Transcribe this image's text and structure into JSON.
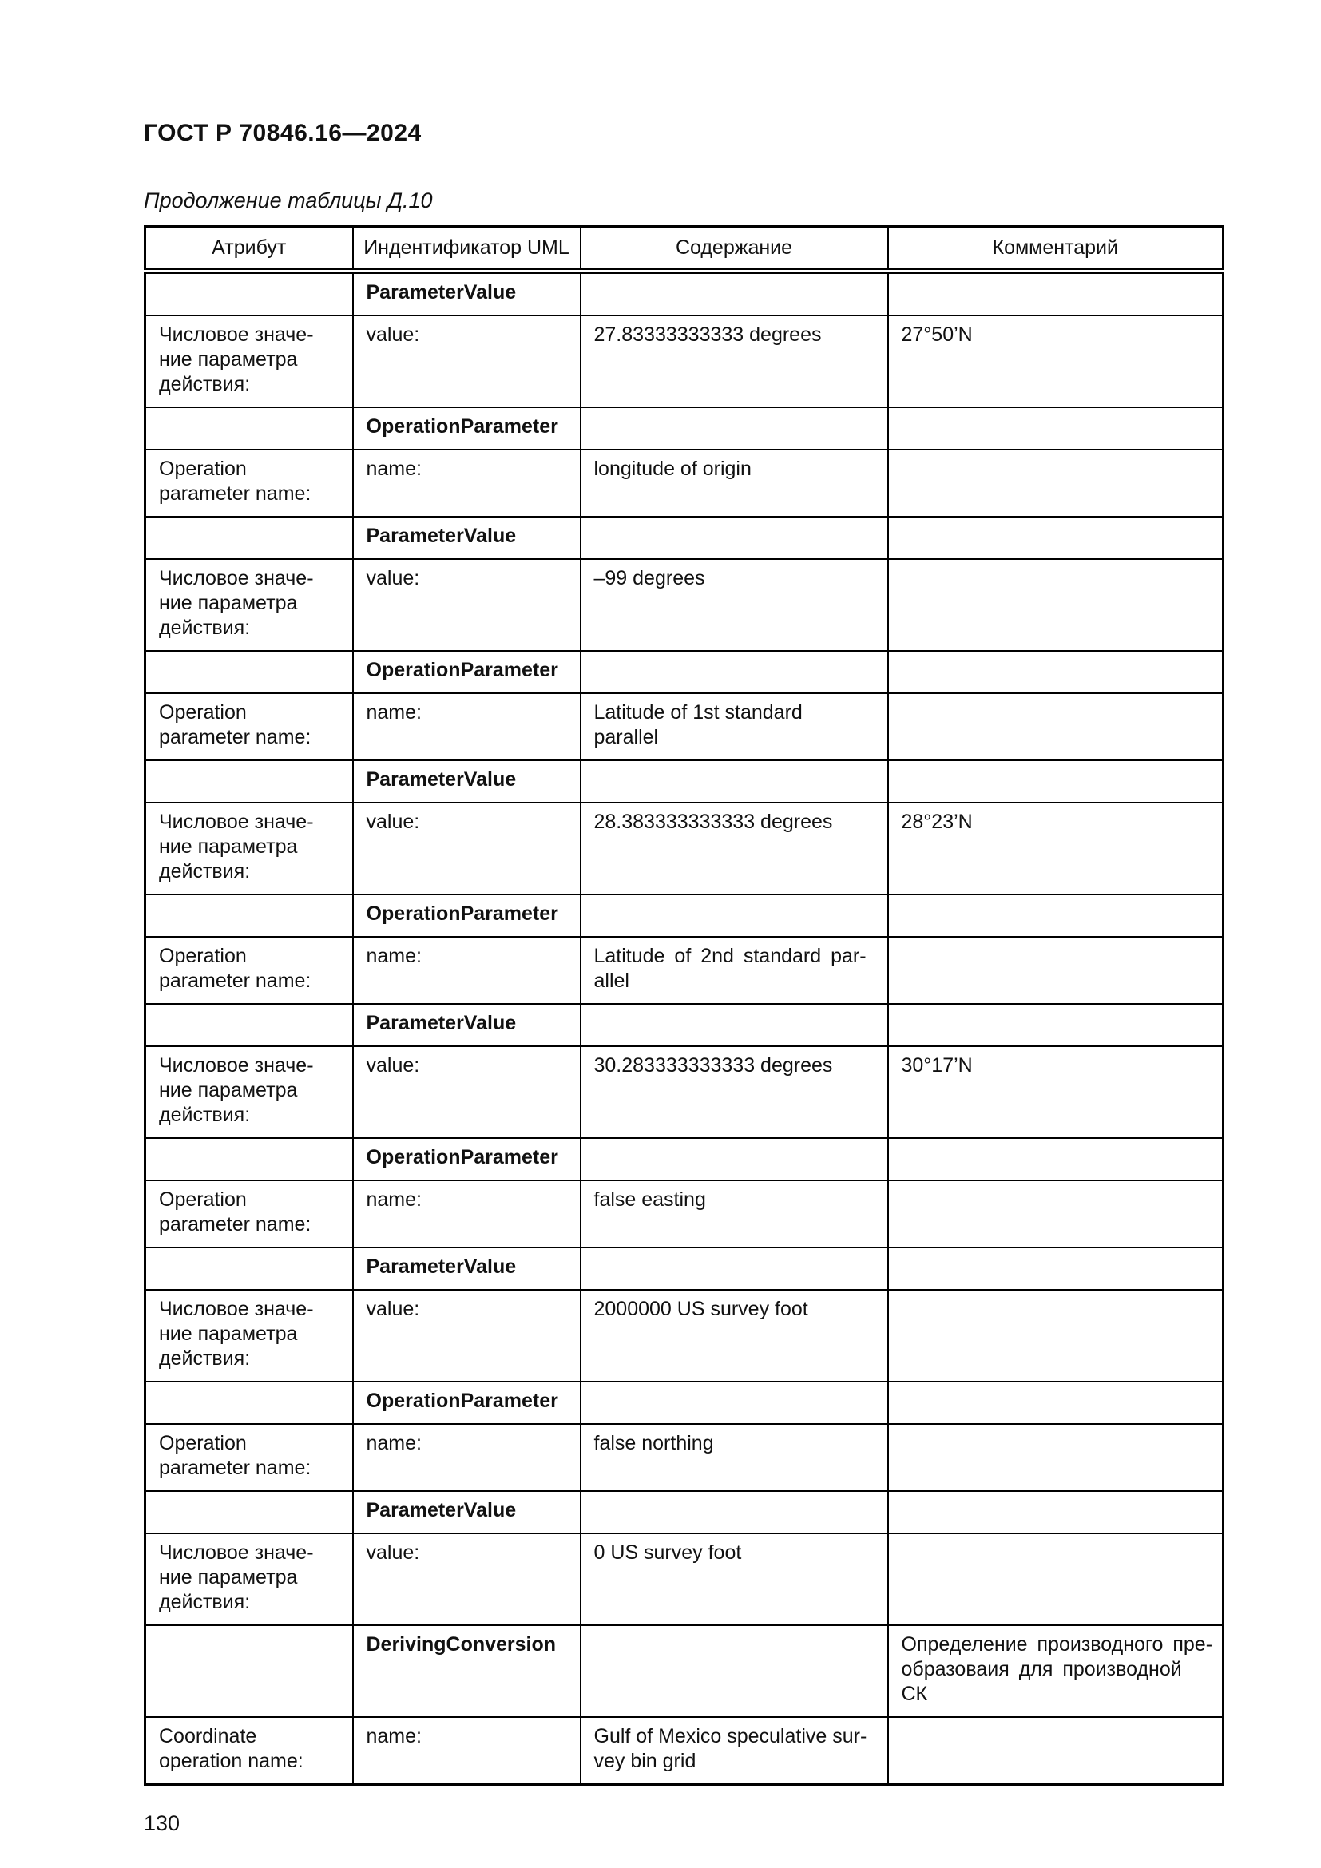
{
  "page": {
    "doc_header": "ГОСТ Р 70846.16—2024",
    "table_caption": "Продолжение таблицы Д.10",
    "page_number": "130"
  },
  "table": {
    "columns": [
      "Атрибут",
      "Индентификатор UML",
      "Содержание",
      "Комментарий"
    ],
    "rows": [
      {
        "attr": "",
        "uml": "ParameterValue",
        "content": "",
        "comment": "",
        "bold": true
      },
      {
        "attr": "Числовое значе-\nние параметра\nдействия:",
        "uml": "value:",
        "content": "27.83333333333 degrees",
        "comment": "27°50’N"
      },
      {
        "attr": "",
        "uml": "OperationParameter",
        "content": "",
        "comment": "",
        "bold": true
      },
      {
        "attr": "Operation\nparameter name:",
        "uml": "name:",
        "content": "longitude of origin",
        "comment": ""
      },
      {
        "attr": "",
        "uml": "ParameterValue",
        "content": "",
        "comment": "",
        "bold": true
      },
      {
        "attr": "Числовое значе-\nние параметра\nдействия:",
        "uml": "value:",
        "content": "–99 degrees",
        "comment": ""
      },
      {
        "attr": "",
        "uml": "OperationParameter",
        "content": "",
        "comment": "",
        "bold": true
      },
      {
        "attr": "Operation\nparameter name:",
        "uml": "name:",
        "content": "Latitude of 1st standard\nparallel",
        "comment": ""
      },
      {
        "attr": "",
        "uml": "ParameterValue",
        "content": "",
        "comment": "",
        "bold": true
      },
      {
        "attr": "Числовое значе-\nние параметра\nдействия:",
        "uml": "value:",
        "content": "28.383333333333 degrees",
        "comment": "28°23’N"
      },
      {
        "attr": "",
        "uml": "OperationParameter",
        "content": "",
        "comment": "",
        "bold": true
      },
      {
        "attr": "Operation\nparameter name:",
        "uml": "name:",
        "content": "Latitude of 2nd standard par-\nallel",
        "comment": "",
        "justify": true
      },
      {
        "attr": "",
        "uml": "ParameterValue",
        "content": "",
        "comment": "",
        "bold": true
      },
      {
        "attr": "Числовое значе-\nние параметра\nдействия:",
        "uml": "value:",
        "content": "30.283333333333 degrees",
        "comment": "30°17’N"
      },
      {
        "attr": "",
        "uml": "OperationParameter",
        "content": "",
        "comment": "",
        "bold": true
      },
      {
        "attr": "Operation\nparameter name:",
        "uml": "name:",
        "content": "false easting",
        "comment": ""
      },
      {
        "attr": "",
        "uml": "ParameterValue",
        "content": "",
        "comment": "",
        "bold": true
      },
      {
        "attr": "Числовое значе-\nние параметра\nдействия:",
        "uml": "value:",
        "content": "2000000 US survey foot",
        "comment": ""
      },
      {
        "attr": "",
        "uml": "OperationParameter",
        "content": "",
        "comment": "",
        "bold": true
      },
      {
        "attr": "Operation\nparameter name:",
        "uml": "name:",
        "content": "false northing",
        "comment": ""
      },
      {
        "attr": "",
        "uml": "ParameterValue",
        "content": "",
        "comment": "",
        "bold": true
      },
      {
        "attr": "Числовое значе-\nние параметра\nдействия:",
        "uml": "value:",
        "content": "0 US survey foot",
        "comment": ""
      },
      {
        "attr": "",
        "uml": "DerivingConversion",
        "content": "",
        "comment": "Определение производного пре-\nобразоваия для производной СК",
        "bold": true,
        "justify_comment": true
      },
      {
        "attr": "Coordinate\noperation name:",
        "uml": "name:",
        "content": "Gulf of Mexico speculative sur-\nvey bin grid",
        "comment": ""
      }
    ]
  }
}
